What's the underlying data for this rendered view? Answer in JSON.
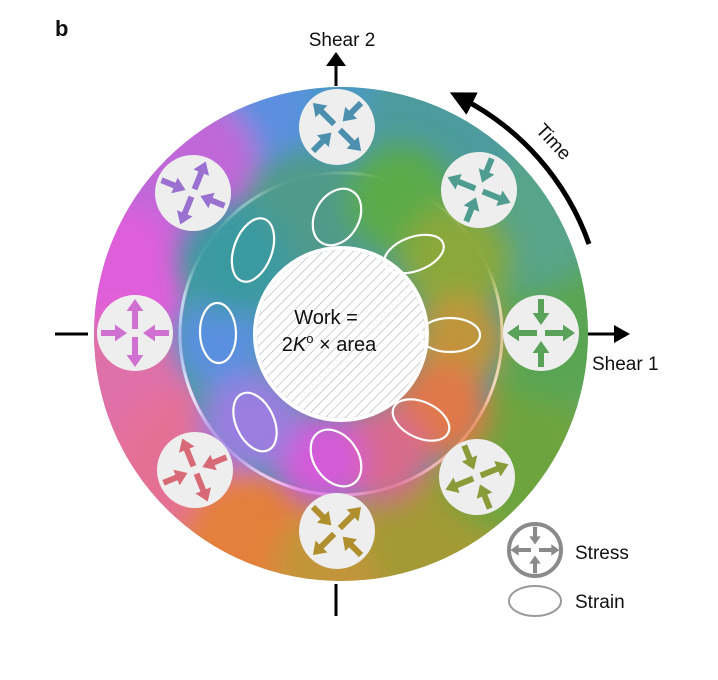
{
  "panel_label": "b",
  "axes": {
    "shear1": "Shear 2",
    "shear2": "Shear 1"
  },
  "time_label": "Time",
  "center": {
    "line1": "Work =",
    "line2_prefix": "2",
    "line2_symbol": "K",
    "line2_sup": "o",
    "line2_suffix": " × area"
  },
  "legend": {
    "stress": "Stress",
    "strain": "Strain"
  },
  "colors": {
    "stress_glyph": "#8a8a8a",
    "strain_glyph": "#9a9a9a",
    "disk": "#eeeeee",
    "ring_green": "#5aa25a",
    "ring_teal": "#4f9c9a",
    "ring_blue": "#4a90d9",
    "ring_magenta": "#d95bd6",
    "ring_pink": "#e0709a",
    "ring_orange": "#e0803a",
    "ring_olive": "#a8962c"
  },
  "icons": {
    "stress": "stress-arrows-icon",
    "strain": "strain-ellipse-icon"
  }
}
